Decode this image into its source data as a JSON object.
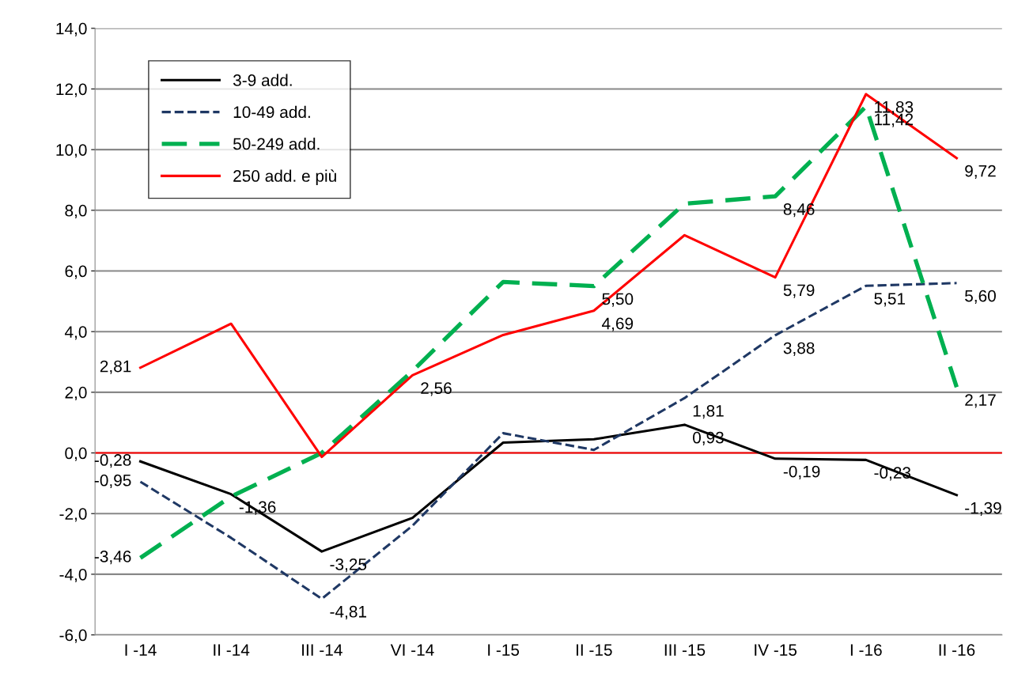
{
  "chart_data": {
    "type": "line",
    "categories": [
      "I -14",
      "II -14",
      "III -14",
      "VI -14",
      "I -15",
      "II -15",
      "III -15",
      "IV -15",
      "I -16",
      "II -16"
    ],
    "series": [
      {
        "name": "3-9 add.",
        "color": "#000000",
        "line_style": "solid",
        "values": [
          -0.28,
          -1.36,
          -3.25,
          -2.14,
          0.34,
          0.45,
          0.93,
          -0.19,
          -0.23,
          -1.39
        ],
        "value_labels": [
          "-0,28",
          "-1,36",
          "-3,25",
          null,
          null,
          null,
          "0,93",
          "-0,19",
          "-0,23",
          "-1,39"
        ]
      },
      {
        "name": "10-49 add.",
        "color": "#1f3864",
        "line_style": "dashed",
        "values": [
          -0.95,
          -2.8,
          -4.81,
          -2.4,
          0.65,
          0.1,
          1.81,
          3.88,
          5.51,
          5.6
        ],
        "value_labels": [
          "-0,95",
          null,
          "-4,81",
          null,
          null,
          null,
          "1,81",
          "3,88",
          "5,51",
          "5,60"
        ]
      },
      {
        "name": "50-249 add.",
        "color": "#00b050",
        "line_style": "dashed",
        "values": [
          -3.46,
          -1.44,
          0.0,
          2.7,
          5.64,
          5.5,
          8.22,
          8.46,
          11.42,
          2.17
        ],
        "value_labels": [
          "-3,46",
          null,
          null,
          null,
          null,
          "5,50",
          null,
          "8,46",
          "11,42",
          "2,17"
        ]
      },
      {
        "name": "250 add. e più",
        "color": "#ff0000",
        "line_style": "solid",
        "values": [
          2.81,
          4.26,
          -0.13,
          2.56,
          3.89,
          4.69,
          7.18,
          5.79,
          11.83,
          9.72
        ],
        "value_labels": [
          "2,81",
          null,
          null,
          "2,56",
          null,
          "4,69",
          null,
          "5,79",
          "11,83",
          "9,72"
        ]
      }
    ],
    "ylim": [
      -6,
      14
    ],
    "yticks": [
      {
        "value": -6,
        "label": "-6,0"
      },
      {
        "value": -4,
        "label": "-4,0"
      },
      {
        "value": -2,
        "label": "-2,0"
      },
      {
        "value": 0,
        "label": "0,0"
      },
      {
        "value": 2,
        "label": "2,0"
      },
      {
        "value": 4,
        "label": "4,0"
      },
      {
        "value": 6,
        "label": "6,0"
      },
      {
        "value": 8,
        "label": "8,0"
      },
      {
        "value": 10,
        "label": "10,0"
      },
      {
        "value": 12,
        "label": "12,0"
      },
      {
        "value": 14,
        "label": "14,0"
      }
    ],
    "grid": "y",
    "legend": "top left",
    "marker": "none",
    "ref_lines": [
      {
        "axis": "y",
        "value": 0,
        "color": "#ff0000"
      }
    ]
  }
}
